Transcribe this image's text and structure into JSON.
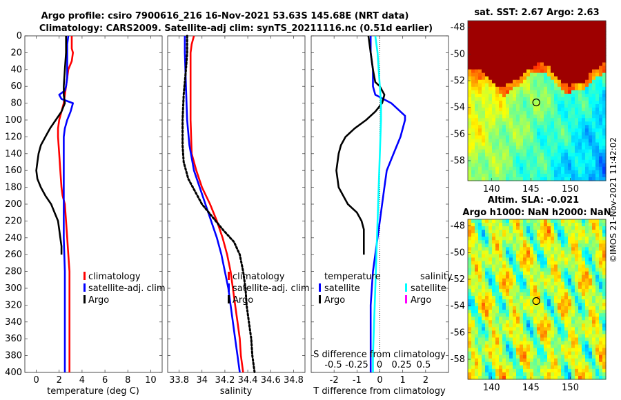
{
  "title": {
    "line1": "Argo profile: csiro 7900616_216 16-Nov-2021 53.63S 145.68E (NRT data)",
    "line2": "Climatology: CARS2009. Satellite-adj clim: synTS_20211116.nc (0.51d earlier)"
  },
  "colors": {
    "clim": "#ff0000",
    "sat": "#0000ff",
    "argo": "#000000",
    "sal_sat": "#00ffff",
    "sal_argo": "#ff00ff"
  },
  "chart_data": [
    {
      "type": "line",
      "name": "temperature",
      "xlabel": "temperature (deg C)",
      "ylabel": "",
      "xlim": [
        -1,
        11
      ],
      "ylim": [
        400,
        0
      ],
      "xticks": [
        "0",
        "2",
        "4",
        "6",
        "8",
        "10"
      ],
      "yticks": [
        "0",
        "20",
        "40",
        "60",
        "80",
        "100",
        "120",
        "140",
        "160",
        "180",
        "200",
        "220",
        "240",
        "260",
        "280",
        "300",
        "320",
        "340",
        "360",
        "380",
        "400"
      ],
      "legend": [
        "climatology",
        "satellite-adj. clim",
        "Argo"
      ],
      "series": [
        {
          "name": "climatology",
          "color": "clim",
          "points": [
            [
              3.1,
              0
            ],
            [
              3.1,
              15
            ],
            [
              3.2,
              20
            ],
            [
              3.1,
              30
            ],
            [
              2.8,
              40
            ],
            [
              2.7,
              50
            ],
            [
              2.6,
              60
            ],
            [
              2.5,
              70
            ],
            [
              2.4,
              80
            ],
            [
              2.2,
              90
            ],
            [
              2.0,
              100
            ],
            [
              1.9,
              110
            ],
            [
              1.9,
              120
            ],
            [
              2.0,
              140
            ],
            [
              2.1,
              160
            ],
            [
              2.2,
              180
            ],
            [
              2.3,
              190
            ],
            [
              2.5,
              200
            ],
            [
              2.6,
              220
            ],
            [
              2.7,
              240
            ],
            [
              2.8,
              260
            ],
            [
              2.9,
              280
            ],
            [
              2.9,
              320
            ],
            [
              2.9,
              360
            ],
            [
              2.9,
              400
            ]
          ]
        },
        {
          "name": "satellite-adj. clim",
          "color": "sat",
          "points": [
            [
              2.8,
              0
            ],
            [
              2.7,
              10
            ],
            [
              2.7,
              20
            ],
            [
              2.7,
              30
            ],
            [
              2.7,
              40
            ],
            [
              2.7,
              50
            ],
            [
              2.6,
              60
            ],
            [
              2.5,
              65
            ],
            [
              2.0,
              70
            ],
            [
              2.2,
              75
            ],
            [
              3.2,
              80
            ],
            [
              3.0,
              90
            ],
            [
              2.7,
              100
            ],
            [
              2.5,
              110
            ],
            [
              2.4,
              120
            ],
            [
              2.4,
              140
            ],
            [
              2.4,
              160
            ],
            [
              2.4,
              180
            ],
            [
              2.4,
              200
            ],
            [
              2.4,
              240
            ],
            [
              2.5,
              280
            ],
            [
              2.5,
              320
            ],
            [
              2.5,
              360
            ],
            [
              2.5,
              400
            ]
          ]
        },
        {
          "name": "Argo",
          "color": "argo",
          "points": [
            [
              2.6,
              0
            ],
            [
              2.6,
              20
            ],
            [
              2.5,
              40
            ],
            [
              2.4,
              60
            ],
            [
              2.4,
              70
            ],
            [
              2.5,
              80
            ],
            [
              2.2,
              90
            ],
            [
              1.7,
              100
            ],
            [
              1.2,
              110
            ],
            [
              0.8,
              120
            ],
            [
              0.4,
              130
            ],
            [
              0.2,
              140
            ],
            [
              0.1,
              150
            ],
            [
              0.0,
              160
            ],
            [
              0.1,
              170
            ],
            [
              0.4,
              180
            ],
            [
              0.8,
              190
            ],
            [
              1.3,
              200
            ],
            [
              1.6,
              210
            ],
            [
              1.9,
              220
            ],
            [
              2.0,
              230
            ],
            [
              2.1,
              240
            ],
            [
              2.2,
              250
            ],
            [
              2.2,
              260
            ]
          ]
        }
      ]
    },
    {
      "type": "line",
      "name": "salinity",
      "xlabel": "salinity",
      "xlim": [
        33.7,
        34.9
      ],
      "ylim": [
        400,
        0
      ],
      "xticks": [
        "33.8",
        "34",
        "34.2",
        "34.4",
        "34.6",
        "34.8"
      ],
      "legend": [
        "climatology",
        "satellite-adj. clim",
        "Argo"
      ],
      "series": [
        {
          "name": "climatology",
          "color": "clim",
          "points": [
            [
              33.93,
              0
            ],
            [
              33.91,
              10
            ],
            [
              33.9,
              20
            ],
            [
              33.9,
              60
            ],
            [
              33.9,
              100
            ],
            [
              33.91,
              140
            ],
            [
              33.95,
              160
            ],
            [
              34.0,
              180
            ],
            [
              34.07,
              200
            ],
            [
              34.13,
              220
            ],
            [
              34.18,
              240
            ],
            [
              34.22,
              260
            ],
            [
              34.25,
              280
            ],
            [
              34.27,
              300
            ],
            [
              34.29,
              320
            ],
            [
              34.31,
              340
            ],
            [
              34.33,
              360
            ],
            [
              34.34,
              380
            ],
            [
              34.36,
              400
            ]
          ]
        },
        {
          "name": "satellite-adj. clim",
          "color": "sat",
          "points": [
            [
              33.85,
              0
            ],
            [
              33.85,
              20
            ],
            [
              33.86,
              60
            ],
            [
              33.87,
              100
            ],
            [
              33.89,
              130
            ],
            [
              33.93,
              160
            ],
            [
              33.98,
              180
            ],
            [
              34.03,
              200
            ],
            [
              34.08,
              220
            ],
            [
              34.13,
              240
            ],
            [
              34.17,
              260
            ],
            [
              34.2,
              280
            ],
            [
              34.23,
              300
            ],
            [
              34.25,
              320
            ],
            [
              34.27,
              340
            ],
            [
              34.29,
              360
            ],
            [
              34.31,
              380
            ],
            [
              34.33,
              400
            ]
          ]
        },
        {
          "name": "Argo",
          "color": "argo",
          "dashed": true,
          "points": [
            [
              33.87,
              0
            ],
            [
              33.87,
              20
            ],
            [
              33.86,
              40
            ],
            [
              33.84,
              70
            ],
            [
              33.83,
              100
            ],
            [
              33.83,
              130
            ],
            [
              33.84,
              150
            ],
            [
              33.88,
              170
            ],
            [
              33.94,
              185
            ],
            [
              34.0,
              200
            ],
            [
              34.09,
              215
            ],
            [
              34.18,
              230
            ],
            [
              34.28,
              245
            ],
            [
              34.33,
              260
            ],
            [
              34.36,
              280
            ],
            [
              34.38,
              300
            ],
            [
              34.39,
              320
            ],
            [
              34.41,
              340
            ],
            [
              34.43,
              360
            ],
            [
              34.44,
              380
            ],
            [
              34.46,
              400
            ]
          ]
        }
      ]
    },
    {
      "type": "line",
      "name": "difference from climatology",
      "xlabel": "T difference from climatology",
      "top_label": "S difference from climatology",
      "xlim": [
        -3,
        3
      ],
      "ylim": [
        400,
        0
      ],
      "xticks": [
        "-2",
        "-1",
        "0",
        "1",
        "2"
      ],
      "top_ticks": [
        "-0.5",
        "-0.25",
        "0",
        "0.25",
        "0.5"
      ],
      "legend_left_title": "temperature",
      "legend_right_title": "salinity",
      "legend_left": [
        "satellite",
        "Argo"
      ],
      "legend_right": [
        "satellite",
        "Argo"
      ],
      "series": [
        {
          "name": "T satellite",
          "color": "sat",
          "points": [
            [
              -0.4,
              0
            ],
            [
              -0.4,
              20
            ],
            [
              -0.3,
              40
            ],
            [
              -0.3,
              60
            ],
            [
              -0.2,
              70
            ],
            [
              0.5,
              80
            ],
            [
              1.1,
              95
            ],
            [
              1.1,
              100
            ],
            [
              0.9,
              120
            ],
            [
              0.6,
              140
            ],
            [
              0.3,
              160
            ],
            [
              0.2,
              180
            ],
            [
              0.1,
              200
            ],
            [
              -0.1,
              240
            ],
            [
              -0.3,
              280
            ],
            [
              -0.4,
              320
            ],
            [
              -0.4,
              360
            ],
            [
              -0.4,
              400
            ]
          ]
        },
        {
          "name": "T Argo",
          "color": "argo",
          "points": [
            [
              -0.5,
              0
            ],
            [
              -0.4,
              20
            ],
            [
              -0.3,
              40
            ],
            [
              -0.2,
              55
            ],
            [
              0.0,
              60
            ],
            [
              0.2,
              70
            ],
            [
              0.1,
              80
            ],
            [
              -0.2,
              90
            ],
            [
              -0.6,
              100
            ],
            [
              -1.1,
              110
            ],
            [
              -1.5,
              120
            ],
            [
              -1.7,
              130
            ],
            [
              -1.8,
              140
            ],
            [
              -1.9,
              160
            ],
            [
              -1.8,
              180
            ],
            [
              -1.4,
              200
            ],
            [
              -1.0,
              210
            ],
            [
              -0.8,
              220
            ],
            [
              -0.7,
              230
            ],
            [
              -0.7,
              240
            ],
            [
              -0.7,
              260
            ]
          ]
        },
        {
          "name": "S satellite",
          "color": "sal_sat",
          "points": [
            [
              -0.2,
              0
            ],
            [
              -0.1,
              20
            ],
            [
              -0.05,
              40
            ],
            [
              0.0,
              60
            ],
            [
              0.05,
              80
            ],
            [
              0.05,
              100
            ],
            [
              0.0,
              140
            ],
            [
              -0.05,
              180
            ],
            [
              -0.1,
              220
            ],
            [
              -0.15,
              260
            ],
            [
              -0.2,
              300
            ],
            [
              -0.25,
              340
            ],
            [
              -0.3,
              380
            ],
            [
              -0.3,
              400
            ]
          ]
        }
      ]
    },
    {
      "type": "heatmap",
      "name": "sst map",
      "title": "sat. SST: 2.67 Argo: 2.63",
      "xlim": [
        137,
        154.5
      ],
      "ylim": [
        -59.5,
        -47.5
      ],
      "xticks": [
        "140",
        "145",
        "150"
      ],
      "yticks": [
        "-48",
        "-50",
        "-52",
        "-54",
        "-56",
        "-58"
      ],
      "marker": [
        145.68,
        -53.63
      ]
    },
    {
      "type": "heatmap",
      "name": "sla map",
      "title": "Altim. SLA: -0.021",
      "subtitle": "Argo h1000: NaN h2000: NaN",
      "xlim": [
        137,
        154.5
      ],
      "ylim": [
        -59.5,
        -47.5
      ],
      "xticks": [
        "140",
        "145",
        "150"
      ],
      "yticks": [
        "-48",
        "-50",
        "-52",
        "-54",
        "-56",
        "-58"
      ],
      "marker": [
        145.68,
        -53.63
      ]
    }
  ],
  "watermark": "©IMOS 21-Nov-2021 11:42:02"
}
